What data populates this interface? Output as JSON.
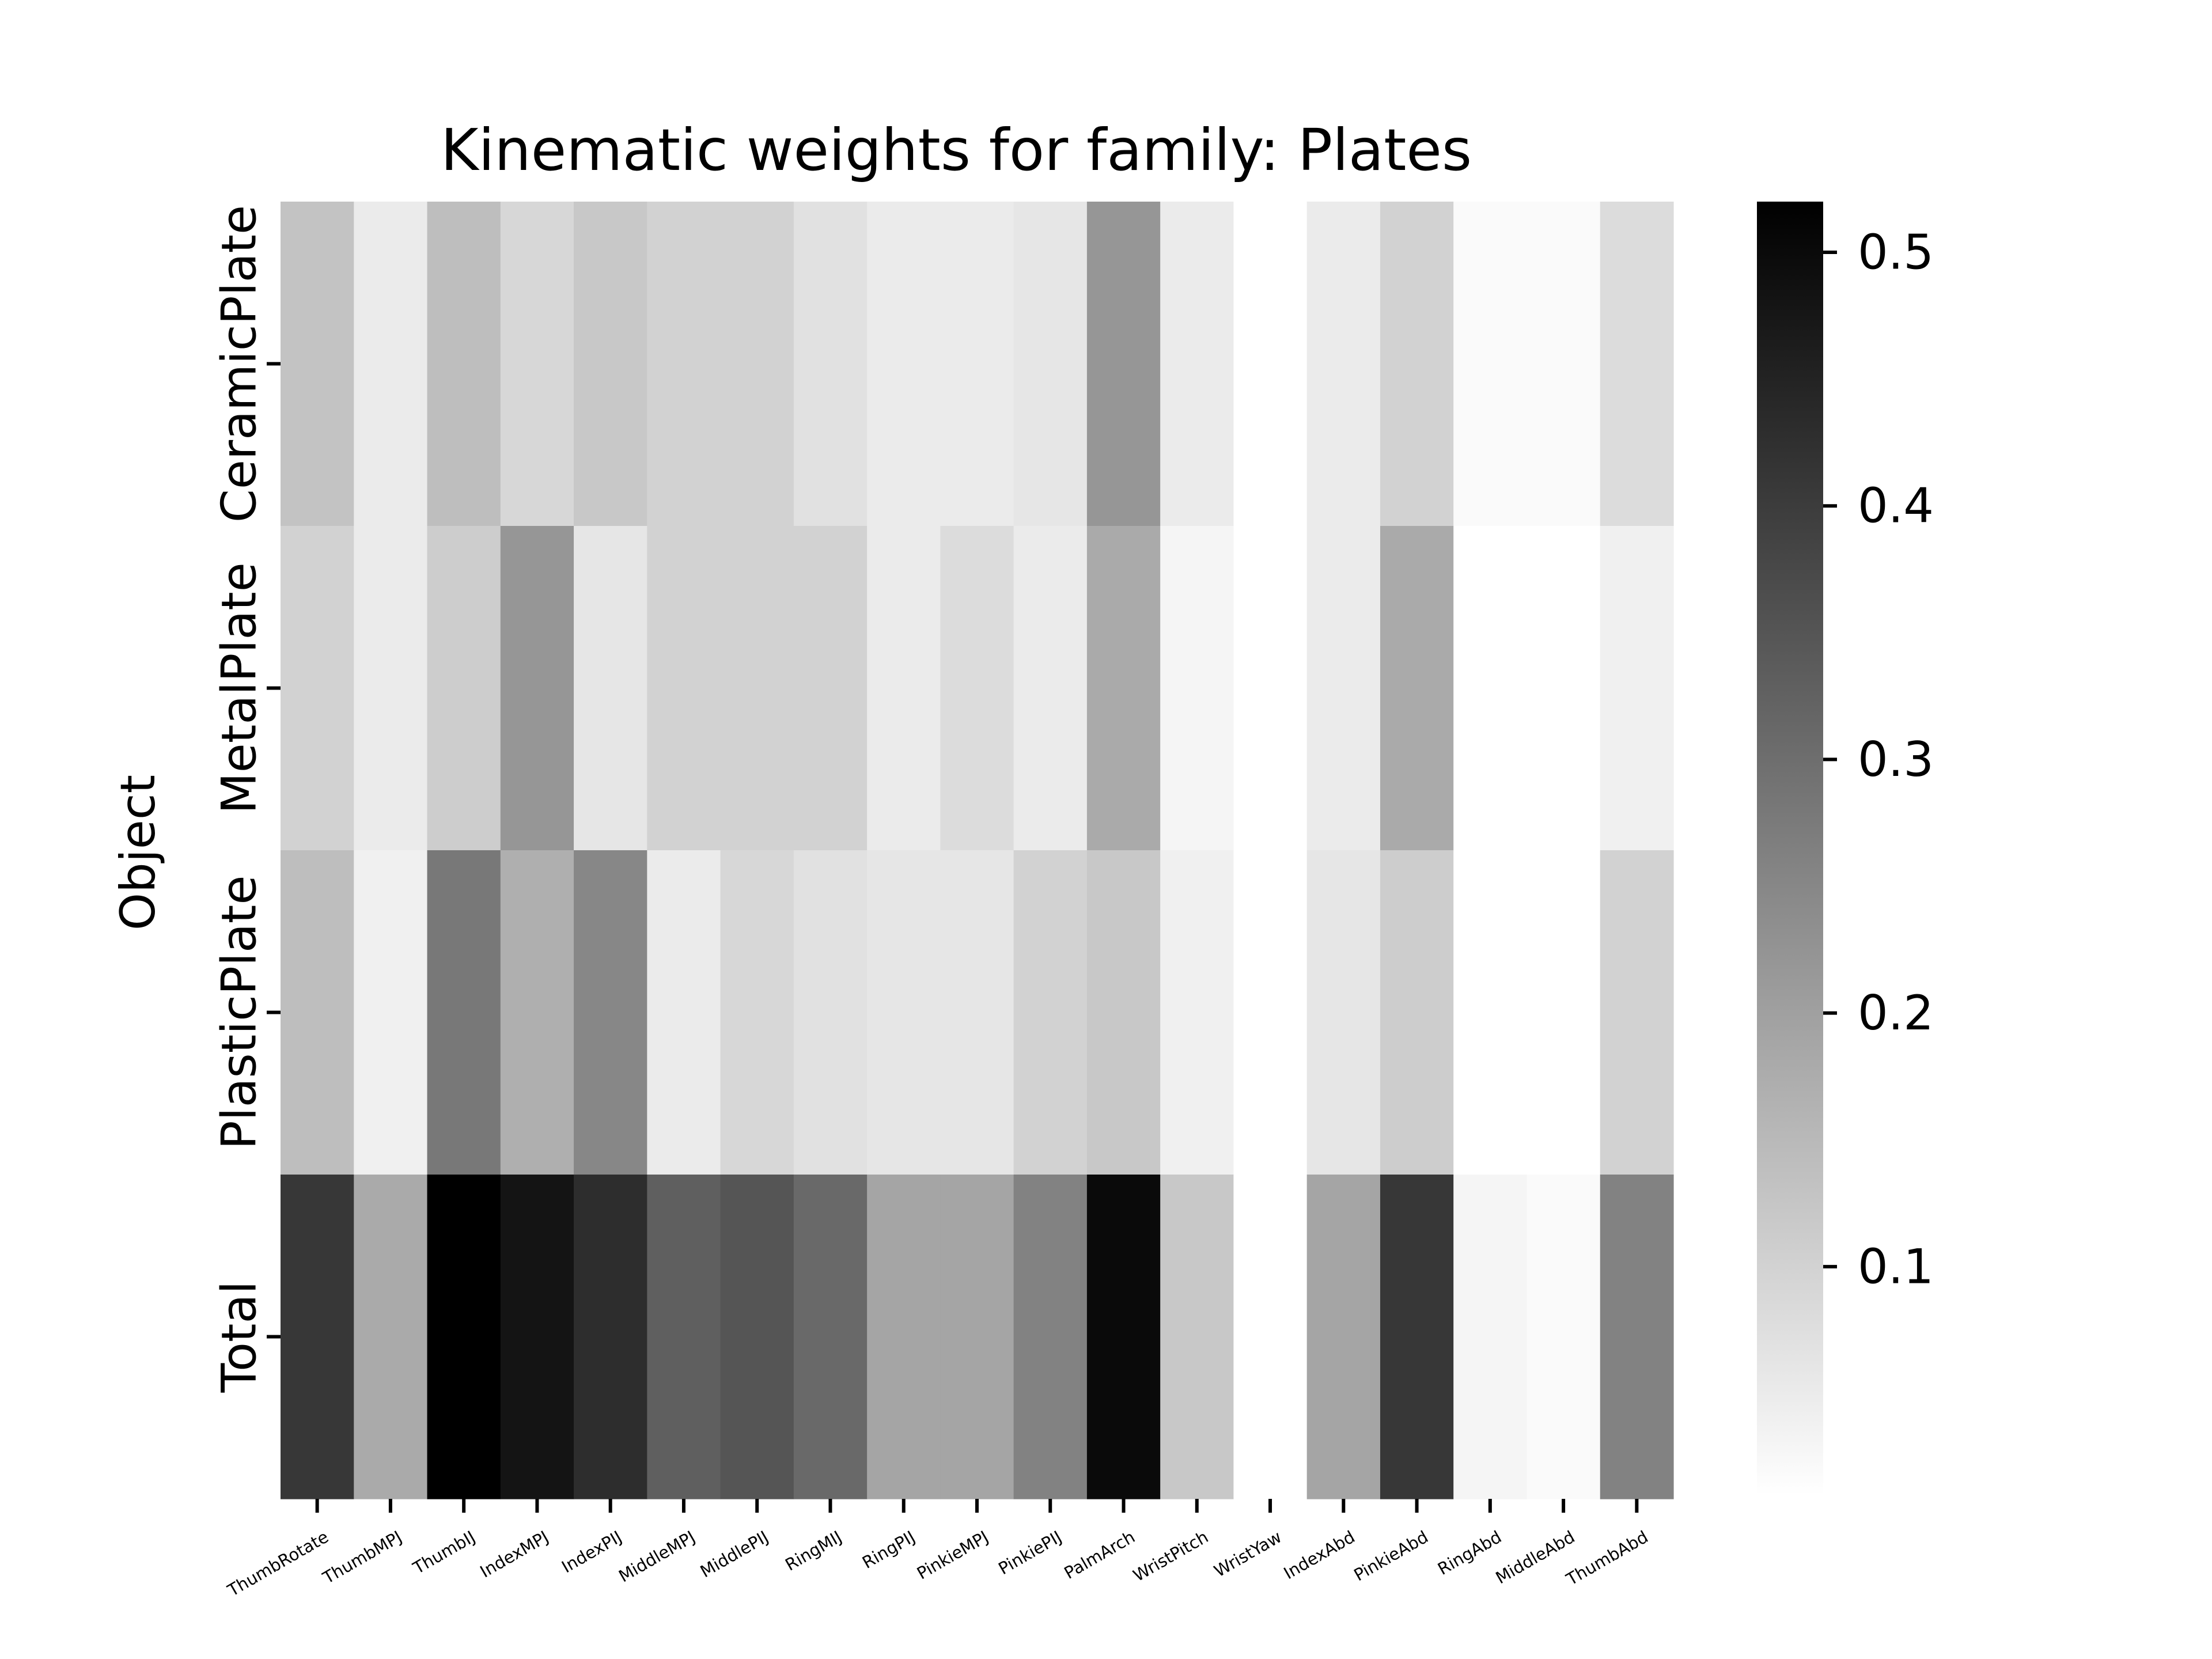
{
  "chart_data": {
    "type": "heatmap",
    "title": "Kinematic weights for family: Plates",
    "ylabel": "Object",
    "xlabel": "",
    "rows": [
      "CeramicPlate",
      "MetalPlate",
      "PlasticPlate",
      "Total"
    ],
    "columns": [
      "ThumbRotate",
      "ThumbMPJ",
      "ThumbIJ",
      "IndexMPJ",
      "IndexPIJ",
      "MiddleMPJ",
      "MiddlePIJ",
      "RingMIJ",
      "RingPIJ",
      "PinkieMPJ",
      "PinkiePIJ",
      "PalmArch",
      "WristPitch",
      "WristYaw",
      "IndexAbd",
      "PinkieAbd",
      "RingAbd",
      "MiddleAbd",
      "ThumbAbd"
    ],
    "values": [
      [
        0.13,
        0.05,
        0.14,
        0.09,
        0.12,
        0.1,
        0.1,
        0.07,
        0.05,
        0.05,
        0.06,
        0.22,
        0.05,
        null,
        0.05,
        0.1,
        0.02,
        0.02,
        0.08
      ],
      [
        0.1,
        0.05,
        0.11,
        0.22,
        0.06,
        0.1,
        0.1,
        0.1,
        0.05,
        0.08,
        0.05,
        0.18,
        0.03,
        null,
        0.05,
        0.18,
        0.01,
        0.01,
        0.04
      ],
      [
        0.14,
        0.04,
        0.28,
        0.17,
        0.25,
        0.05,
        0.09,
        0.07,
        0.06,
        0.06,
        0.1,
        0.12,
        0.04,
        null,
        0.06,
        0.11,
        0.0,
        0.0,
        0.1
      ],
      [
        0.41,
        0.18,
        0.52,
        0.48,
        0.43,
        0.33,
        0.35,
        0.31,
        0.19,
        0.19,
        0.26,
        0.5,
        0.12,
        0.0,
        0.19,
        0.41,
        0.03,
        0.02,
        0.26
      ]
    ],
    "colorbar": {
      "colormap": "Greys",
      "vmin": 0.01,
      "vmax": 0.52,
      "ticks": [
        0.1,
        0.2,
        0.3,
        0.4,
        0.5
      ],
      "tick_labels": [
        "0.1",
        "0.2",
        "0.3",
        "0.4",
        "0.5"
      ]
    },
    "missing_color": "#ffffff"
  }
}
